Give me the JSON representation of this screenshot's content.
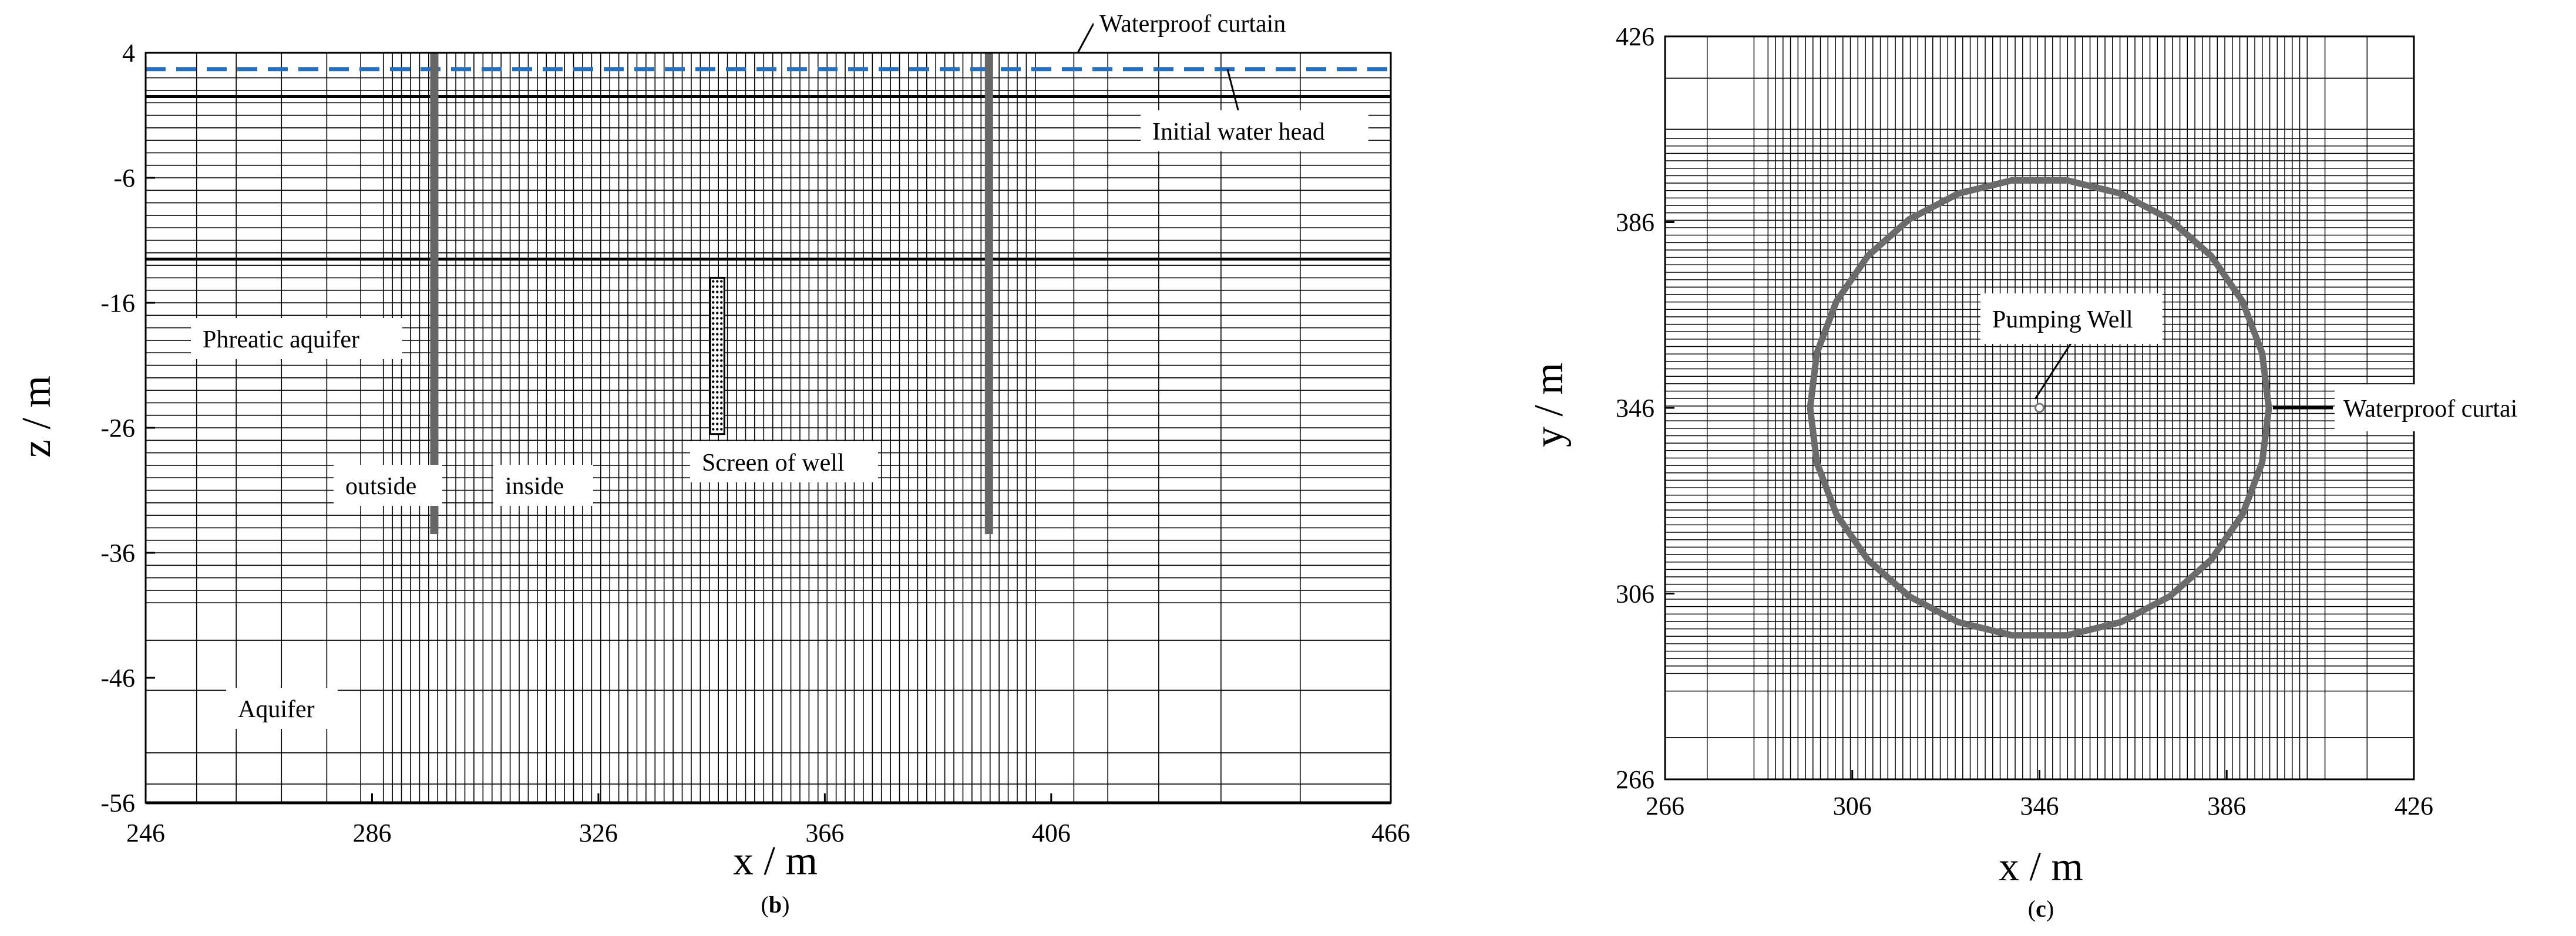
{
  "panels": [
    {
      "label_prefix": "(",
      "label_letter": "b",
      "label_suffix": ")",
      "xlabel": "x / m",
      "ylabel": "z / m",
      "xticks": [
        246,
        286,
        326,
        366,
        406,
        466
      ],
      "yticks": [
        4,
        -6,
        -16,
        -26,
        -36,
        -46,
        -56
      ],
      "xlim": [
        246,
        466
      ],
      "ylim": [
        -56,
        4
      ],
      "annotations": {
        "waterproof_curtain": "Waterproof curtain",
        "initial_water_head": "Initial water head",
        "phreatic_aquifer": "Phreatic aquifer",
        "outside": "outside",
        "inside": "inside",
        "screen_of_well": "Screen of well",
        "aquifer": "Aquifer"
      },
      "features": {
        "initial_water_head_z": 2.7,
        "ground_surface_z": 0.5,
        "aquifer_boundary_z": -12.5,
        "curtain_x": [
          297,
          395
        ],
        "curtain_bottom_z": -34.5,
        "well_x": 347,
        "well_screen_z": [
          -14,
          -26.5
        ]
      },
      "colors": {
        "water_head": "#2a6fb5",
        "curtain": "#666666",
        "grid": "#000000"
      }
    },
    {
      "label_prefix": "(",
      "label_letter": "c",
      "label_suffix": ")",
      "xlabel": "x / m",
      "ylabel": "y / m",
      "xticks": [
        266,
        306,
        346,
        386,
        426
      ],
      "yticks": [
        426,
        386,
        346,
        306,
        266
      ],
      "xlim": [
        266,
        426
      ],
      "ylim": [
        266,
        426
      ],
      "annotations": {
        "pumping_well": "Pumping Well",
        "waterproof_curtain": "Waterproof curtai"
      },
      "features": {
        "circle_center": [
          346,
          346
        ],
        "circle_radius": 49,
        "well_point": [
          346,
          346
        ]
      },
      "colors": {
        "curtain": "#6b6b6b",
        "grid": "#000000"
      }
    }
  ]
}
